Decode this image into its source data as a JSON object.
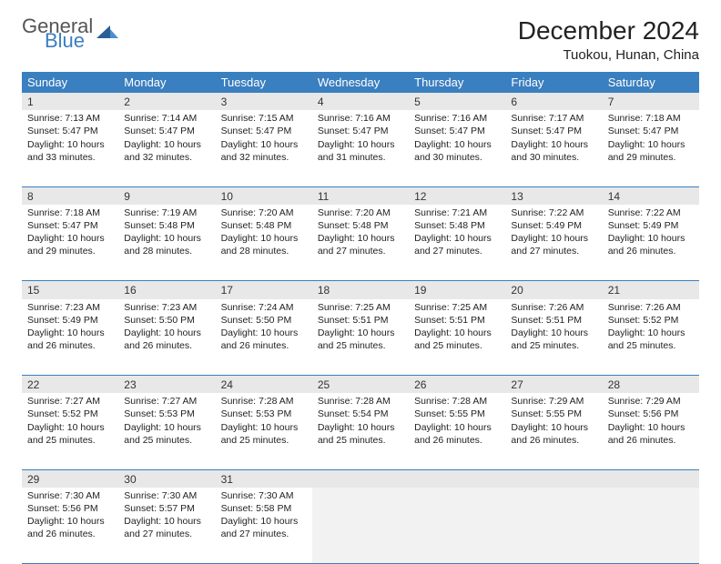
{
  "logo": {
    "general": "General",
    "blue": "Blue"
  },
  "title": "December 2024",
  "location": "Tuokou, Hunan, China",
  "colors": {
    "header_bg": "#3a7fbf",
    "header_text": "#ffffff",
    "daynum_bg": "#e8e8e8",
    "rule": "#3a7fbf",
    "logo_gray": "#555555",
    "logo_blue": "#3a7fbf"
  },
  "weekdays": [
    "Sunday",
    "Monday",
    "Tuesday",
    "Wednesday",
    "Thursday",
    "Friday",
    "Saturday"
  ],
  "weeks": [
    {
      "nums": [
        "1",
        "2",
        "3",
        "4",
        "5",
        "6",
        "7"
      ],
      "cells": [
        {
          "sr": "7:13 AM",
          "ss": "5:47 PM",
          "dl": "10 hours and 33 minutes."
        },
        {
          "sr": "7:14 AM",
          "ss": "5:47 PM",
          "dl": "10 hours and 32 minutes."
        },
        {
          "sr": "7:15 AM",
          "ss": "5:47 PM",
          "dl": "10 hours and 32 minutes."
        },
        {
          "sr": "7:16 AM",
          "ss": "5:47 PM",
          "dl": "10 hours and 31 minutes."
        },
        {
          "sr": "7:16 AM",
          "ss": "5:47 PM",
          "dl": "10 hours and 30 minutes."
        },
        {
          "sr": "7:17 AM",
          "ss": "5:47 PM",
          "dl": "10 hours and 30 minutes."
        },
        {
          "sr": "7:18 AM",
          "ss": "5:47 PM",
          "dl": "10 hours and 29 minutes."
        }
      ]
    },
    {
      "nums": [
        "8",
        "9",
        "10",
        "11",
        "12",
        "13",
        "14"
      ],
      "cells": [
        {
          "sr": "7:18 AM",
          "ss": "5:47 PM",
          "dl": "10 hours and 29 minutes."
        },
        {
          "sr": "7:19 AM",
          "ss": "5:48 PM",
          "dl": "10 hours and 28 minutes."
        },
        {
          "sr": "7:20 AM",
          "ss": "5:48 PM",
          "dl": "10 hours and 28 minutes."
        },
        {
          "sr": "7:20 AM",
          "ss": "5:48 PM",
          "dl": "10 hours and 27 minutes."
        },
        {
          "sr": "7:21 AM",
          "ss": "5:48 PM",
          "dl": "10 hours and 27 minutes."
        },
        {
          "sr": "7:22 AM",
          "ss": "5:49 PM",
          "dl": "10 hours and 27 minutes."
        },
        {
          "sr": "7:22 AM",
          "ss": "5:49 PM",
          "dl": "10 hours and 26 minutes."
        }
      ]
    },
    {
      "nums": [
        "15",
        "16",
        "17",
        "18",
        "19",
        "20",
        "21"
      ],
      "cells": [
        {
          "sr": "7:23 AM",
          "ss": "5:49 PM",
          "dl": "10 hours and 26 minutes."
        },
        {
          "sr": "7:23 AM",
          "ss": "5:50 PM",
          "dl": "10 hours and 26 minutes."
        },
        {
          "sr": "7:24 AM",
          "ss": "5:50 PM",
          "dl": "10 hours and 26 minutes."
        },
        {
          "sr": "7:25 AM",
          "ss": "5:51 PM",
          "dl": "10 hours and 25 minutes."
        },
        {
          "sr": "7:25 AM",
          "ss": "5:51 PM",
          "dl": "10 hours and 25 minutes."
        },
        {
          "sr": "7:26 AM",
          "ss": "5:51 PM",
          "dl": "10 hours and 25 minutes."
        },
        {
          "sr": "7:26 AM",
          "ss": "5:52 PM",
          "dl": "10 hours and 25 minutes."
        }
      ]
    },
    {
      "nums": [
        "22",
        "23",
        "24",
        "25",
        "26",
        "27",
        "28"
      ],
      "cells": [
        {
          "sr": "7:27 AM",
          "ss": "5:52 PM",
          "dl": "10 hours and 25 minutes."
        },
        {
          "sr": "7:27 AM",
          "ss": "5:53 PM",
          "dl": "10 hours and 25 minutes."
        },
        {
          "sr": "7:28 AM",
          "ss": "5:53 PM",
          "dl": "10 hours and 25 minutes."
        },
        {
          "sr": "7:28 AM",
          "ss": "5:54 PM",
          "dl": "10 hours and 25 minutes."
        },
        {
          "sr": "7:28 AM",
          "ss": "5:55 PM",
          "dl": "10 hours and 26 minutes."
        },
        {
          "sr": "7:29 AM",
          "ss": "5:55 PM",
          "dl": "10 hours and 26 minutes."
        },
        {
          "sr": "7:29 AM",
          "ss": "5:56 PM",
          "dl": "10 hours and 26 minutes."
        }
      ]
    },
    {
      "nums": [
        "29",
        "30",
        "31",
        "",
        "",
        "",
        ""
      ],
      "cells": [
        {
          "sr": "7:30 AM",
          "ss": "5:56 PM",
          "dl": "10 hours and 26 minutes."
        },
        {
          "sr": "7:30 AM",
          "ss": "5:57 PM",
          "dl": "10 hours and 27 minutes."
        },
        {
          "sr": "7:30 AM",
          "ss": "5:58 PM",
          "dl": "10 hours and 27 minutes."
        },
        null,
        null,
        null,
        null
      ]
    }
  ],
  "labels": {
    "sunrise": "Sunrise: ",
    "sunset": "Sunset: ",
    "daylight": "Daylight: "
  }
}
